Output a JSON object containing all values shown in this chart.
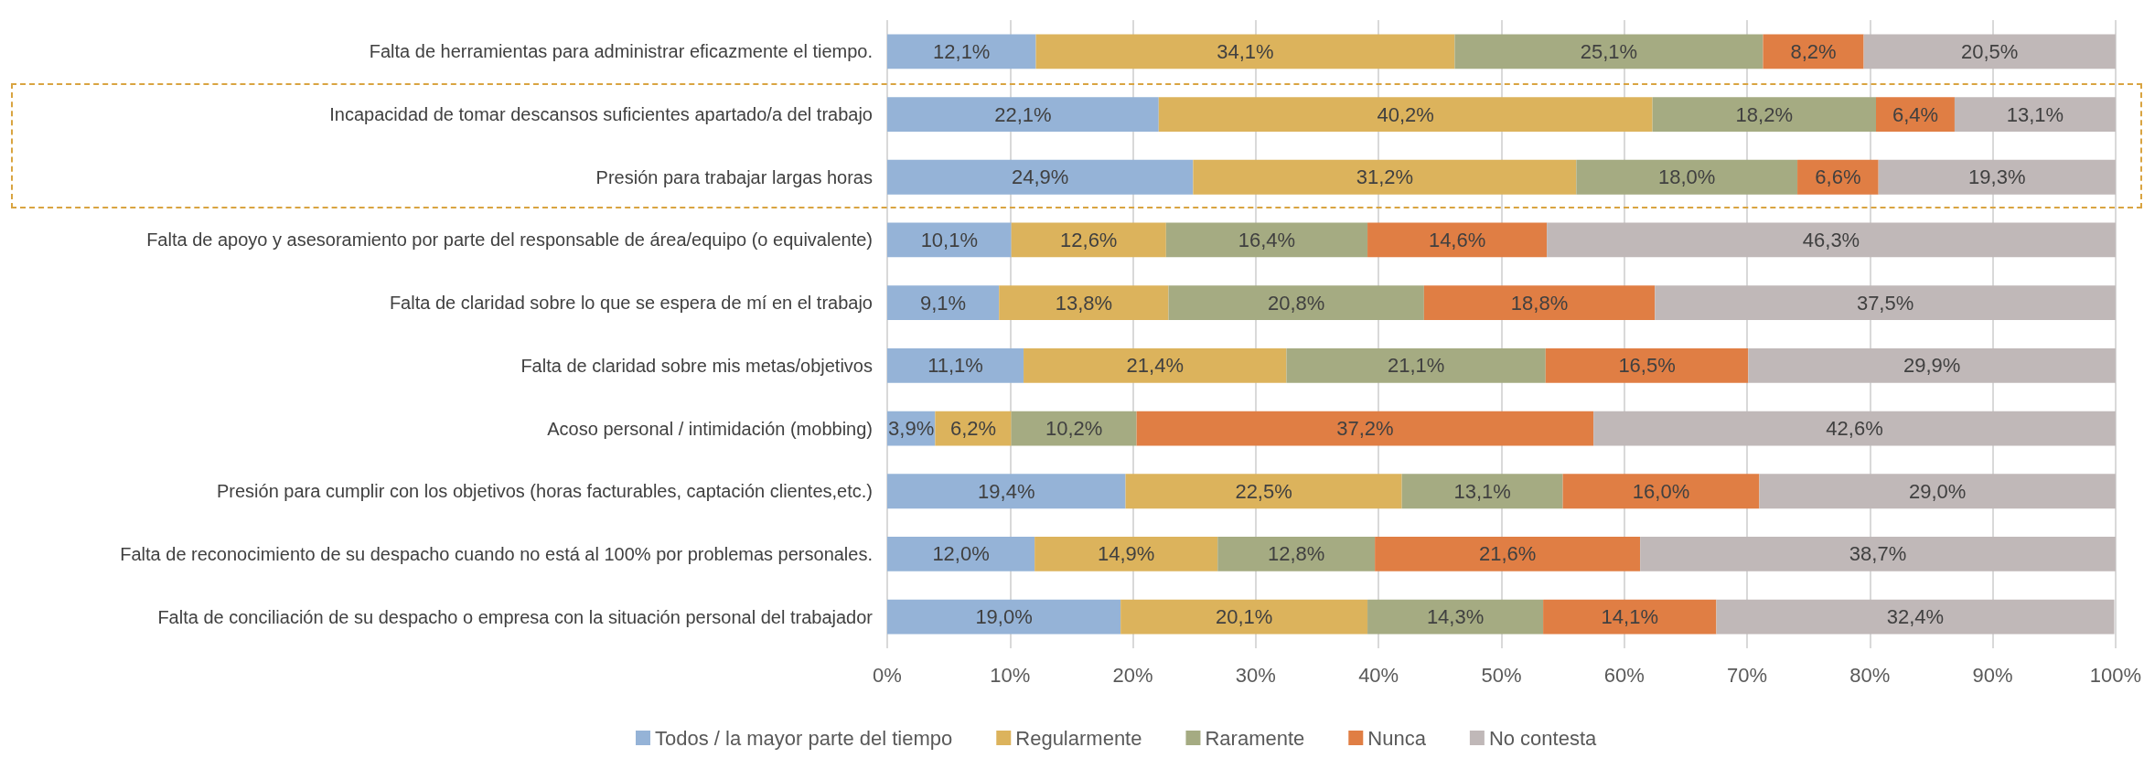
{
  "chart_data": {
    "type": "bar",
    "orientation": "horizontal",
    "stacked": true,
    "grid": "x",
    "legend": "bottom",
    "categories": [
      "Falta de herramientas para administrar eficazmente el tiempo.",
      "Incapacidad de tomar descansos suficientes apartado/a del trabajo",
      "Presión para trabajar largas horas",
      "Falta de apoyo y asesoramiento por parte del responsable de área/equipo (o equivalente)",
      "Falta de claridad sobre lo que se espera de mí en el trabajo",
      "Falta de claridad sobre mis metas/objetivos",
      "Acoso personal / intimidación (mobbing)",
      "Presión para cumplir con los objetivos (horas facturables, captación clientes,etc.)",
      "Falta de reconocimiento de su despacho cuando no está al 100% por problemas personales.",
      "Falta de conciliación de su despacho o empresa con la situación personal del trabajador"
    ],
    "series": [
      {
        "name": "Todos / la mayor parte del tiempo",
        "color": "#95b3d7",
        "values": [
          12.1,
          22.1,
          24.9,
          10.1,
          9.1,
          11.1,
          3.9,
          19.4,
          12.0,
          19.0
        ],
        "value_labels": [
          "12,1%",
          "22,1%",
          "24,9%",
          "10,1%",
          "9,1%",
          "11,1%",
          "3,9%",
          "19,4%",
          "12,0%",
          "19,0%"
        ]
      },
      {
        "name": "Regularmente",
        "color": "#dcb35c",
        "values": [
          34.1,
          40.2,
          31.2,
          12.6,
          13.8,
          21.4,
          6.2,
          22.5,
          14.9,
          20.1
        ],
        "value_labels": [
          "34,1%",
          "40,2%",
          "31,2%",
          "12,6%",
          "13,8%",
          "21,4%",
          "6,2%",
          "22,5%",
          "14,9%",
          "20,1%"
        ]
      },
      {
        "name": "Raramente",
        "color": "#a5ab82",
        "values": [
          25.1,
          18.2,
          18.0,
          16.4,
          20.8,
          21.1,
          10.2,
          13.1,
          12.8,
          14.3
        ],
        "value_labels": [
          "25,1%",
          "18,2%",
          "18,0%",
          "16,4%",
          "20,8%",
          "21,1%",
          "10,2%",
          "13,1%",
          "12,8%",
          "14,3%"
        ]
      },
      {
        "name": "Nunca",
        "color": "#e07e44",
        "values": [
          8.2,
          6.4,
          6.6,
          14.6,
          18.8,
          16.5,
          37.2,
          16.0,
          21.6,
          14.1
        ],
        "value_labels": [
          "8,2%",
          "6,4%",
          "6,6%",
          "14,6%",
          "18,8%",
          "16,5%",
          "37,2%",
          "16,0%",
          "21,6%",
          "14,1%"
        ]
      },
      {
        "name": "No contesta",
        "color": "#c0b8b8",
        "values": [
          20.5,
          13.1,
          19.3,
          46.3,
          37.5,
          29.9,
          42.6,
          29.0,
          38.7,
          32.4
        ],
        "value_labels": [
          "20,5%",
          "13,1%",
          "19,3%",
          "46,3%",
          "37,5%",
          "29,9%",
          "42,6%",
          "29,0%",
          "38,7%",
          "32,4%"
        ]
      }
    ],
    "xlim": [
      0,
      100
    ],
    "xticks": [
      {
        "value": 0,
        "label": "0%"
      },
      {
        "value": 10,
        "label": "10%"
      },
      {
        "value": 20,
        "label": "20%"
      },
      {
        "value": 30,
        "label": "30%"
      },
      {
        "value": 40,
        "label": "40%"
      },
      {
        "value": 50,
        "label": "50%"
      },
      {
        "value": 60,
        "label": "60%"
      },
      {
        "value": 70,
        "label": "70%"
      },
      {
        "value": 80,
        "label": "80%"
      },
      {
        "value": 90,
        "label": "90%"
      },
      {
        "value": 100,
        "label": "100%"
      }
    ]
  }
}
